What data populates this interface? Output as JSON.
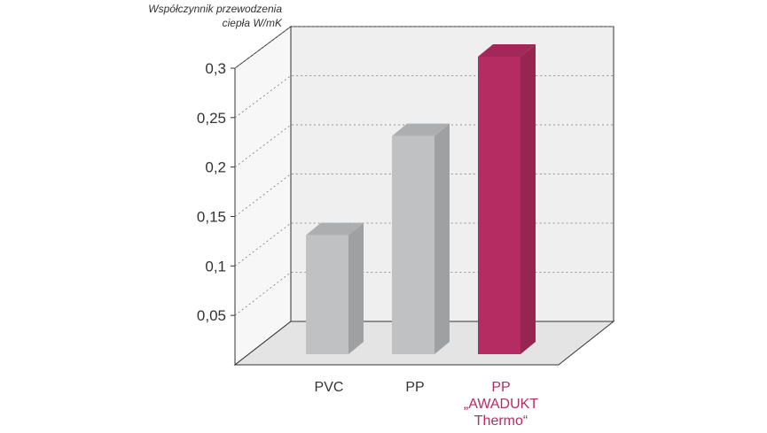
{
  "chart_data": {
    "type": "bar3d",
    "y_label": [
      "Współczynnik przewodzenia",
      "ciepła W/mK"
    ],
    "categories": [
      "PVC",
      "PP",
      "PP „AWADUKT Thermo“"
    ],
    "values": [
      0.12,
      0.22,
      0.3
    ],
    "colors": [
      "#c0c1c3",
      "#c0c1c3",
      "#b52c63"
    ],
    "label_colors": [
      "#333333",
      "#333333",
      "#b52c63"
    ],
    "ylim": [
      0,
      0.3
    ],
    "yticks": [
      {
        "value": 0.05,
        "label": "0,05"
      },
      {
        "value": 0.1,
        "label": "0,1"
      },
      {
        "value": 0.15,
        "label": "0,15"
      },
      {
        "value": 0.2,
        "label": "0,2"
      },
      {
        "value": 0.25,
        "label": "0,25"
      },
      {
        "value": 0.3,
        "label": "0,3"
      }
    ],
    "grid": true
  }
}
